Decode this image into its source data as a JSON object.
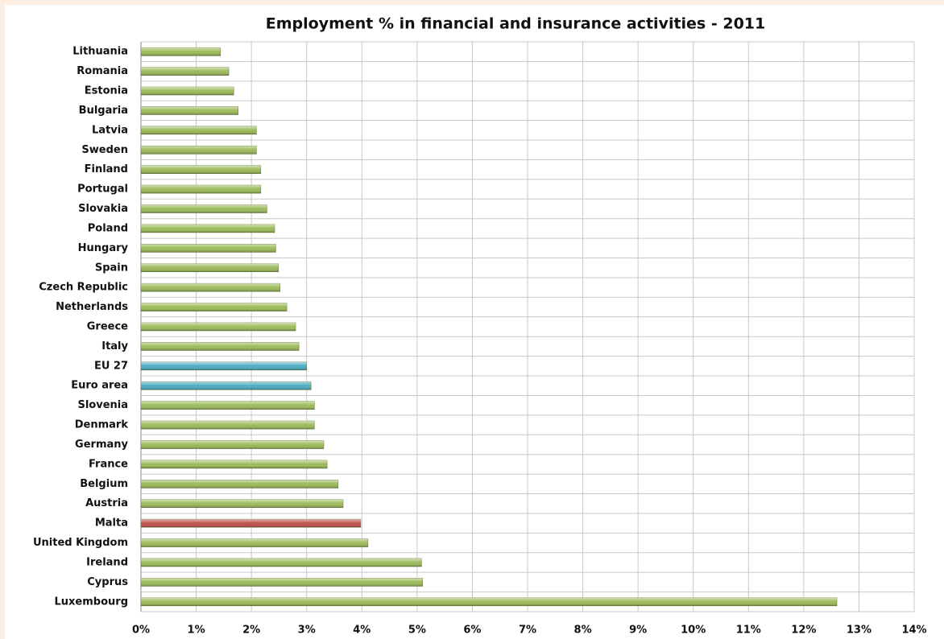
{
  "chart_data": {
    "type": "barh",
    "title": "Employment % in financial and insurance activities - 2011",
    "categories": [
      "Lithuania",
      "Romania",
      "Estonia",
      "Bulgaria",
      "Latvia",
      "Sweden",
      "Finland",
      "Portugal",
      "Slovakia",
      "Poland",
      "Hungary",
      "Spain",
      "Czech Republic",
      "Netherlands",
      "Greece",
      "Italy",
      "EU 27",
      "Euro area",
      "Slovenia",
      "Denmark",
      "Germany",
      "France",
      "Belgium",
      "Austria",
      "Malta",
      "United Kingdom",
      "Ireland",
      "Cyprus",
      "Luxembourg"
    ],
    "values": [
      1.44,
      1.59,
      1.68,
      1.76,
      2.09,
      2.09,
      2.17,
      2.17,
      2.28,
      2.42,
      2.44,
      2.49,
      2.52,
      2.64,
      2.8,
      2.86,
      3.0,
      3.08,
      3.14,
      3.14,
      3.31,
      3.37,
      3.57,
      3.66,
      3.98,
      4.11,
      5.08,
      5.1,
      12.6
    ],
    "colors": [
      "#9bbb59",
      "#9bbb59",
      "#9bbb59",
      "#9bbb59",
      "#9bbb59",
      "#9bbb59",
      "#9bbb59",
      "#9bbb59",
      "#9bbb59",
      "#9bbb59",
      "#9bbb59",
      "#9bbb59",
      "#9bbb59",
      "#9bbb59",
      "#9bbb59",
      "#9bbb59",
      "#4bacc6",
      "#4bacc6",
      "#9bbb59",
      "#9bbb59",
      "#9bbb59",
      "#9bbb59",
      "#9bbb59",
      "#9bbb59",
      "#c0504d",
      "#9bbb59",
      "#9bbb59",
      "#9bbb59",
      "#9bbb59"
    ],
    "xlim": [
      0,
      14
    ],
    "xticks": [
      {
        "value": 0,
        "label": "0%"
      },
      {
        "value": 1,
        "label": "1%"
      },
      {
        "value": 2,
        "label": "2%"
      },
      {
        "value": 3,
        "label": "3%"
      },
      {
        "value": 4,
        "label": "4%"
      },
      {
        "value": 5,
        "label": "5%"
      },
      {
        "value": 6,
        "label": "6%"
      },
      {
        "value": 7,
        "label": "7%"
      },
      {
        "value": 8,
        "label": "8%"
      },
      {
        "value": 9,
        "label": "9%"
      },
      {
        "value": 10,
        "label": "10%"
      },
      {
        "value": 11,
        "label": "11%"
      },
      {
        "value": 12,
        "label": "12%"
      },
      {
        "value": 13,
        "label": "13%"
      },
      {
        "value": 14,
        "label": "14%"
      }
    ],
    "grid": true
  }
}
